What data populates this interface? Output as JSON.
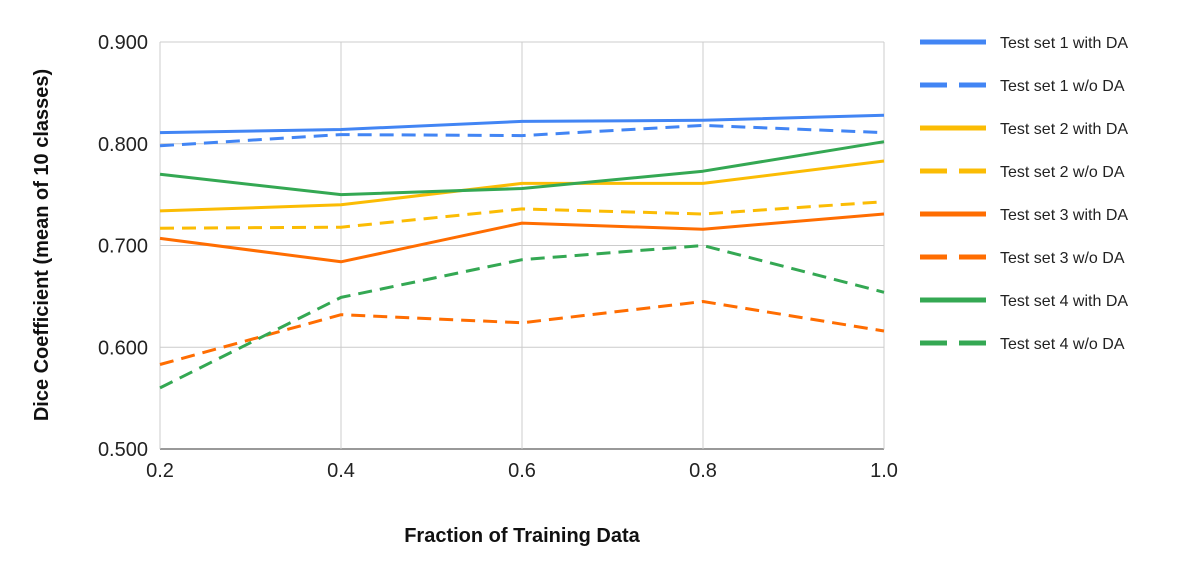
{
  "chart_data": {
    "type": "line",
    "title": "",
    "xlabel": "Fraction of Training Data",
    "ylabel": "Dice Coefficient (mean of 10 classes)",
    "x": [
      0.2,
      0.4,
      0.6,
      0.8,
      1.0
    ],
    "x_tick_labels": [
      "0.2",
      "0.4",
      "0.6",
      "0.8",
      "1.0"
    ],
    "xlim": [
      0.2,
      1.0
    ],
    "ylim": [
      0.5,
      0.9
    ],
    "y_ticks": [
      0.5,
      0.6,
      0.7,
      0.8,
      0.9
    ],
    "y_tick_labels": [
      "0.500",
      "0.600",
      "0.700",
      "0.800",
      "0.900"
    ],
    "grid": true,
    "legend_position": "right",
    "series": [
      {
        "name": "Test set 1 with DA",
        "color": "#4285F4",
        "dashed": false,
        "values": [
          0.811,
          0.814,
          0.822,
          0.823,
          0.828
        ]
      },
      {
        "name": "Test set 1 w/o DA",
        "color": "#4285F4",
        "dashed": true,
        "values": [
          0.798,
          0.809,
          0.808,
          0.818,
          0.811
        ]
      },
      {
        "name": "Test set 2 with DA",
        "color": "#FBBC04",
        "dashed": false,
        "values": [
          0.734,
          0.74,
          0.761,
          0.761,
          0.783
        ]
      },
      {
        "name": "Test set 2 w/o DA",
        "color": "#FBBC04",
        "dashed": true,
        "values": [
          0.717,
          0.718,
          0.736,
          0.731,
          0.743
        ]
      },
      {
        "name": "Test set 3 with DA",
        "color": "#FF6D01",
        "dashed": false,
        "values": [
          0.707,
          0.684,
          0.722,
          0.716,
          0.731
        ]
      },
      {
        "name": "Test set 3 w/o DA",
        "color": "#FF6D01",
        "dashed": true,
        "values": [
          0.583,
          0.632,
          0.624,
          0.645,
          0.616
        ]
      },
      {
        "name": "Test set 4 with DA",
        "color": "#34A853",
        "dashed": false,
        "values": [
          0.77,
          0.75,
          0.756,
          0.773,
          0.802
        ]
      },
      {
        "name": "Test set 4 w/o DA",
        "color": "#34A853",
        "dashed": true,
        "values": [
          0.56,
          0.649,
          0.686,
          0.7,
          0.654
        ]
      }
    ]
  }
}
